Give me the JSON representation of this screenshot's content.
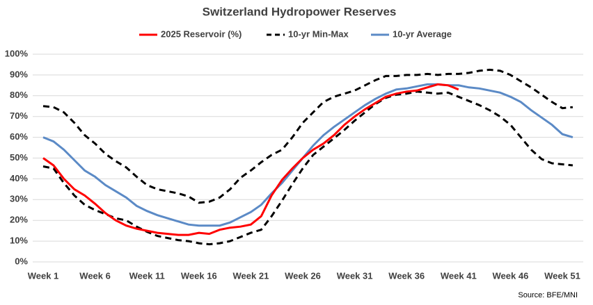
{
  "chart_data": {
    "type": "line",
    "title": "Switzerland Hydropower Reserves",
    "source": "Source: BFE/MNI",
    "categories": [
      "Week 1",
      null,
      null,
      null,
      null,
      "Week 6",
      null,
      null,
      null,
      null,
      "Week 11",
      null,
      null,
      null,
      null,
      "Week 16",
      null,
      null,
      null,
      null,
      "Week 21",
      null,
      null,
      null,
      null,
      "Week 26",
      null,
      null,
      null,
      null,
      "Week 31",
      null,
      null,
      null,
      null,
      "Week 36",
      null,
      null,
      null,
      null,
      "Week 41",
      null,
      null,
      null,
      null,
      "Week 46",
      null,
      null,
      null,
      null,
      "Week 51",
      null
    ],
    "ylim": [
      0,
      100
    ],
    "yticks": [
      {
        "value": 0,
        "label": "0%"
      },
      {
        "value": 10,
        "label": "10%"
      },
      {
        "value": 20,
        "label": "20%"
      },
      {
        "value": 30,
        "label": "30%"
      },
      {
        "value": 40,
        "label": "40%"
      },
      {
        "value": 50,
        "label": "50%"
      },
      {
        "value": 60,
        "label": "60%"
      },
      {
        "value": 70,
        "label": "70%"
      },
      {
        "value": 80,
        "label": "80%"
      },
      {
        "value": 90,
        "label": "90%"
      },
      {
        "value": 100,
        "label": "100%"
      }
    ],
    "series": [
      {
        "name": "2025 Reservoir (%)",
        "color": "#ff0000",
        "dashed": false,
        "values": [
          50,
          46.5,
          40,
          35,
          32,
          28,
          23.5,
          20,
          17.5,
          16,
          15,
          14,
          13.5,
          13,
          13,
          14,
          13.5,
          15.5,
          16.5,
          17,
          18,
          22,
          32,
          39.5,
          45,
          50,
          54,
          57,
          61,
          66,
          70,
          73.5,
          76.5,
          79.5,
          81,
          82,
          82.5,
          84,
          85.5,
          85,
          83,
          null,
          null,
          null,
          null,
          null,
          null,
          null,
          null,
          null,
          null,
          null
        ]
      },
      {
        "name": "10-yr Min-Max",
        "color": "#000000",
        "dashed": true,
        "max": [
          75,
          74.5,
          72,
          67,
          61,
          57,
          52,
          48.5,
          45.5,
          41,
          37,
          35,
          34,
          33,
          31.5,
          28.5,
          29,
          31,
          35,
          40.5,
          44,
          48,
          51.5,
          54,
          60,
          67,
          72,
          77,
          79.5,
          81,
          82.5,
          85,
          87.5,
          89.5,
          89.5,
          90,
          90,
          90.5,
          90,
          90.5,
          90.5,
          91,
          92,
          92.5,
          92,
          90,
          87,
          84,
          80.5,
          77,
          74,
          74.5
        ],
        "min": [
          46,
          45,
          38,
          32,
          27.5,
          25,
          23,
          21,
          20,
          17,
          14.5,
          12.5,
          11.5,
          10.5,
          10,
          9,
          8.5,
          9,
          10,
          12,
          14,
          15.5,
          22,
          29.5,
          37.5,
          45,
          51.5,
          55.5,
          59.5,
          63.5,
          68,
          72,
          76,
          79,
          80.5,
          81,
          82,
          81.5,
          81,
          81.5,
          79.5,
          77.5,
          75.5,
          73,
          70,
          66,
          60,
          54,
          49.5,
          47.5,
          47,
          46.5
        ]
      },
      {
        "name": "10-yr Average",
        "color": "#5b8ac6",
        "dashed": false,
        "values": [
          60,
          58,
          54,
          49,
          44,
          41,
          37,
          34,
          31,
          27,
          24.5,
          22.5,
          21,
          19.5,
          18,
          17.5,
          17.5,
          17.5,
          19,
          21.5,
          24,
          27.5,
          33,
          38,
          44,
          50,
          56,
          61,
          65,
          68.5,
          72,
          75.5,
          78.5,
          81,
          83,
          83.5,
          84.5,
          85.5,
          85.5,
          85,
          85,
          84,
          83.5,
          82.5,
          81.5,
          79.5,
          77,
          73,
          69.5,
          66,
          61.5,
          60
        ]
      }
    ],
    "grid": true
  }
}
